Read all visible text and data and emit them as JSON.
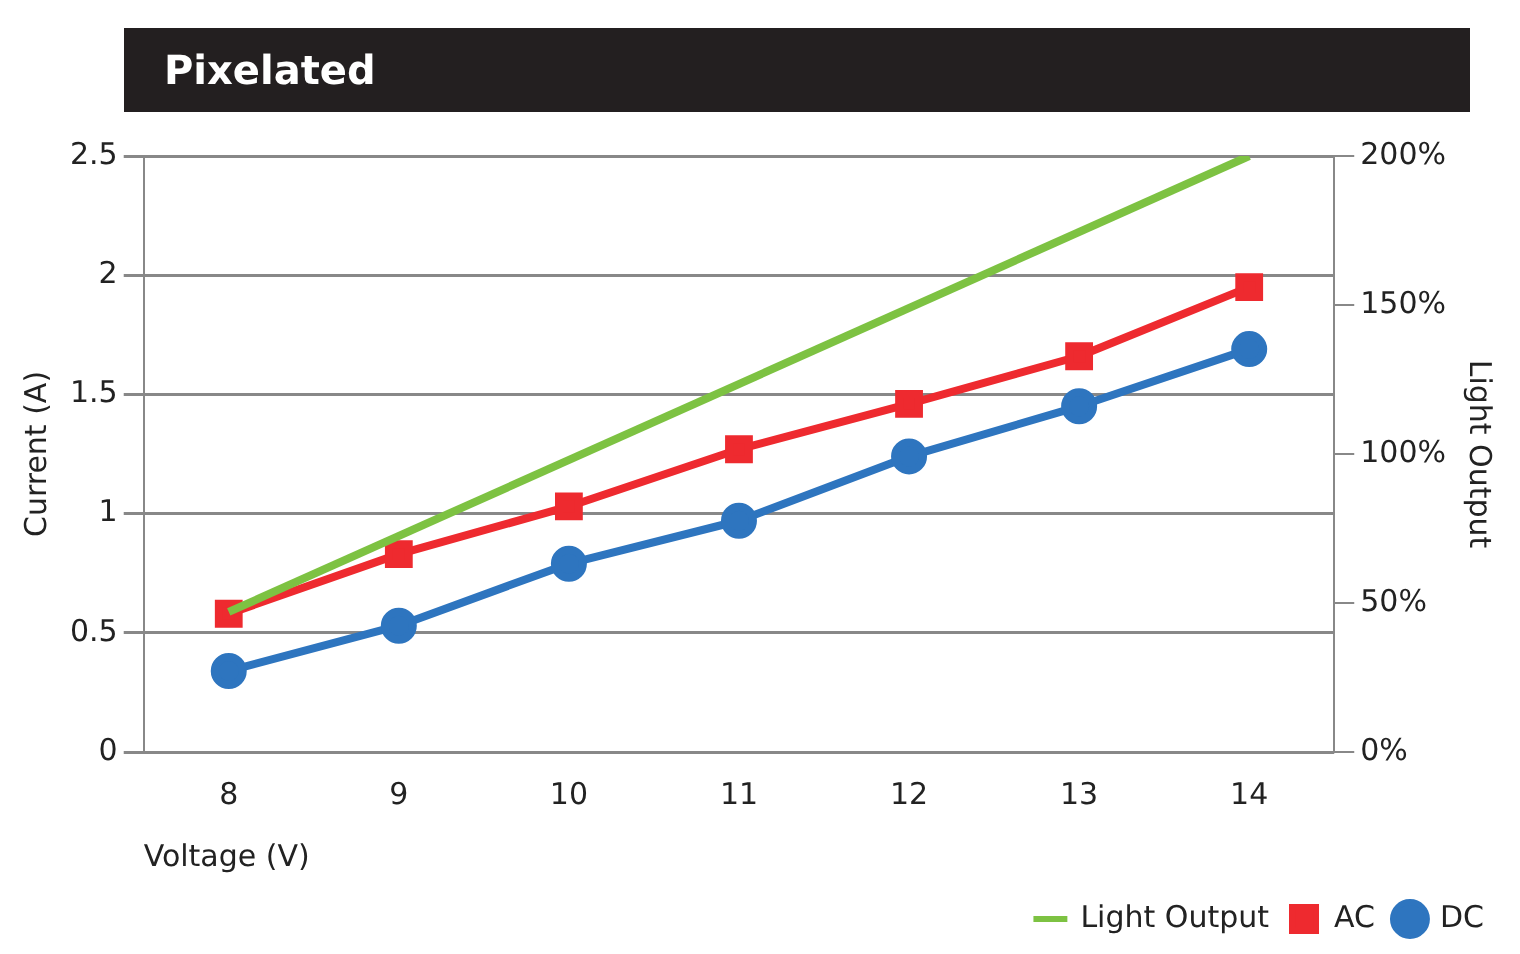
{
  "chart_data": {
    "type": "line",
    "title": "Pixelated",
    "xlabel": "Voltage (V)",
    "ylabel": "Current (A)",
    "y2label": "Light Output",
    "xlim": [
      7.5,
      14.5
    ],
    "xticks": [
      8,
      9,
      10,
      11,
      12,
      13,
      14
    ],
    "ylim": [
      0,
      2.5
    ],
    "yticks": [
      0,
      0.5,
      1,
      1.5,
      2,
      2.5
    ],
    "y2lim": [
      0,
      200
    ],
    "y2ticks": [
      {
        "value": 0,
        "label": "0%"
      },
      {
        "value": 50,
        "label": "50%"
      },
      {
        "value": 100,
        "label": "100%"
      },
      {
        "value": 150,
        "label": "150%"
      },
      {
        "value": 200,
        "label": "200%"
      }
    ],
    "grid": "y",
    "legend": "bottom",
    "series": [
      {
        "name": "Light Output",
        "color": "#7dc242",
        "axis": "y2",
        "marker": "none",
        "x": [
          8,
          14
        ],
        "values": [
          47,
          200
        ]
      },
      {
        "name": "AC",
        "color": "#ee2a2f",
        "marker": "square",
        "x": [
          8,
          9,
          10,
          11,
          12,
          13,
          14
        ],
        "values": [
          0.58,
          0.83,
          1.03,
          1.27,
          1.46,
          1.66,
          1.95
        ]
      },
      {
        "name": "DC",
        "color": "#2e75bf",
        "marker": "circle",
        "x": [
          8,
          9,
          10,
          11,
          12,
          13,
          14
        ],
        "values": [
          0.34,
          0.53,
          0.79,
          0.97,
          1.24,
          1.45,
          1.69
        ]
      }
    ]
  }
}
